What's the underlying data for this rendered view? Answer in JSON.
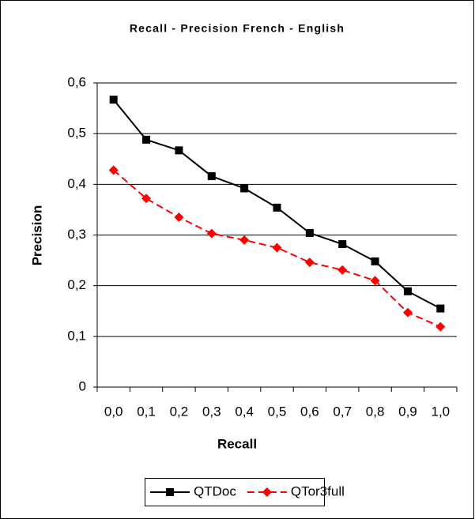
{
  "chart_data": {
    "type": "line",
    "title": "Recall - Precision French - English",
    "x_label": "Recall",
    "y_label": "Precision",
    "categories": [
      "0,0",
      "0,1",
      "0,2",
      "0,3",
      "0,4",
      "0,5",
      "0,6",
      "0,7",
      "0,8",
      "0,9",
      "1,0"
    ],
    "series": [
      {
        "name": "QTDoc",
        "color": "#000000",
        "line_style": "solid",
        "marker": "square",
        "values": [
          0.567,
          0.488,
          0.467,
          0.416,
          0.392,
          0.354,
          0.304,
          0.282,
          0.248,
          0.189,
          0.155
        ]
      },
      {
        "name": "QTor3full",
        "color": "#ff0000",
        "line_style": "dashed",
        "marker": "diamond",
        "values": [
          0.428,
          0.372,
          0.335,
          0.303,
          0.29,
          0.275,
          0.246,
          0.231,
          0.21,
          0.147,
          0.119
        ]
      }
    ],
    "ylim": [
      0,
      0.6
    ],
    "yticks": [
      0,
      {
        "value": 0.1,
        "label": "0,1"
      },
      {
        "value": 0.2,
        "label": "0,2"
      },
      {
        "value": 0.3,
        "label": "0,3"
      },
      {
        "value": 0.4,
        "label": "0,4"
      },
      {
        "value": 0.5,
        "label": "0,5"
      },
      {
        "value": 0.6,
        "label": "0,6"
      }
    ],
    "grid": true,
    "legend": "bottom"
  }
}
